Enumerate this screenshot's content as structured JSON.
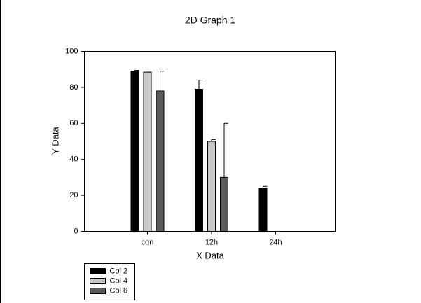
{
  "chart_data": {
    "type": "bar",
    "title": "2D Graph 1",
    "x_label": "X Data",
    "y_label": "Y Data",
    "categories": [
      "con",
      "12h",
      "24h"
    ],
    "series": [
      {
        "name": "Col 2",
        "color": "#000000",
        "values": [
          89,
          79,
          24
        ],
        "errors": [
          0.5,
          5,
          1
        ]
      },
      {
        "name": "Col 4",
        "color": "#c8c8c8",
        "values": [
          88.5,
          50,
          null
        ],
        "errors": [
          0,
          1,
          null
        ]
      },
      {
        "name": "Col 6",
        "color": "#5a5a5a",
        "values": [
          78,
          30,
          null
        ],
        "errors": [
          11,
          30,
          null
        ]
      }
    ],
    "ylim": [
      0,
      100
    ],
    "yticks": [
      0,
      20,
      40,
      60,
      80,
      100
    ],
    "grid": false,
    "legend": "bottom-left"
  }
}
